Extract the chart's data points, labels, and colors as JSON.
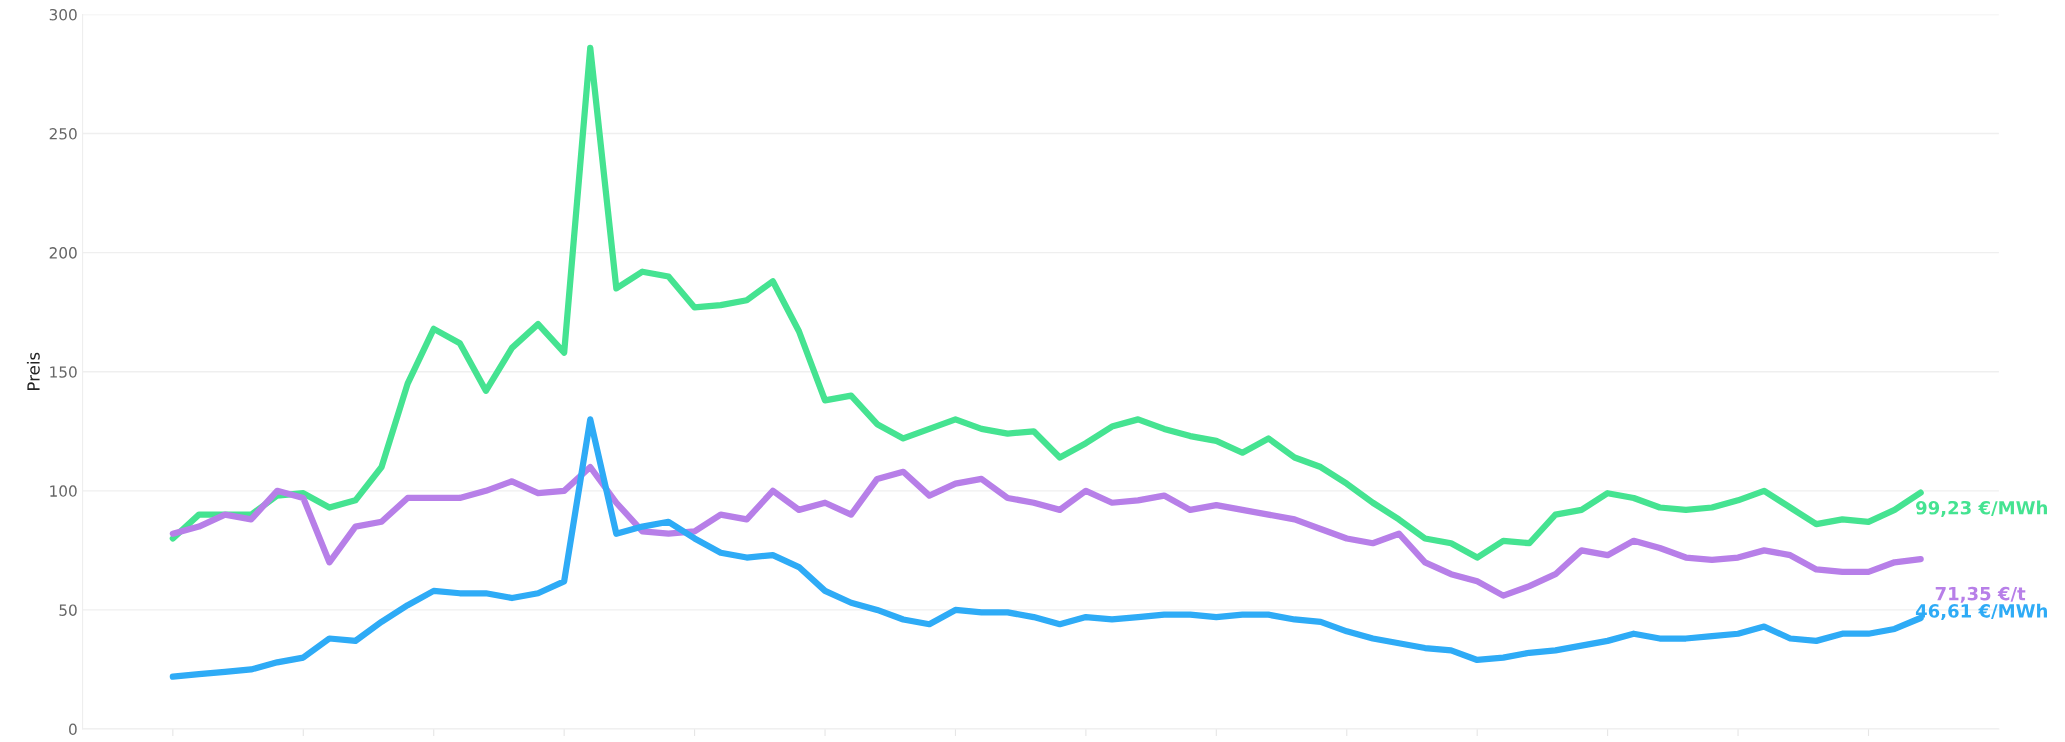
{
  "chart_data": {
    "type": "line",
    "ylabel": "Preis",
    "ylim": [
      0,
      300
    ],
    "yticks": [
      0,
      50,
      100,
      150,
      200,
      250,
      300
    ],
    "grid": "y",
    "tick_labels": "y",
    "legend": false,
    "marker": "none",
    "line_style": "solid",
    "categories": [
      null,
      null,
      null,
      null,
      null,
      null,
      null,
      null,
      null,
      null,
      null,
      null,
      null,
      null,
      null,
      null,
      null,
      null,
      null,
      null,
      null,
      null,
      null,
      null,
      null,
      null,
      null,
      null,
      null,
      null,
      null,
      null,
      null,
      null,
      null,
      null,
      null,
      null,
      null,
      null,
      null,
      null,
      null,
      null,
      null,
      null,
      null,
      null,
      null,
      null,
      null,
      null,
      null,
      null,
      null,
      null,
      null,
      null,
      null,
      null,
      null,
      null,
      null,
      null,
      null,
      null,
      null,
      null
    ],
    "series": [
      {
        "color": "#45e391",
        "values": [
          80,
          90,
          90,
          90,
          98,
          99,
          93,
          96,
          110,
          145,
          168,
          162,
          142,
          160,
          170,
          158,
          286,
          185,
          192,
          190,
          177,
          178,
          180,
          188,
          167,
          138,
          140,
          128,
          122,
          126,
          130,
          126,
          124,
          125,
          114,
          120,
          127,
          130,
          126,
          123,
          121,
          116,
          122,
          114,
          110,
          103,
          95,
          88,
          80,
          78,
          72,
          79,
          78,
          90,
          92,
          99,
          97,
          93,
          92,
          93,
          96,
          100,
          93,
          86,
          88,
          87,
          92,
          99.23
        ],
        "value_labels": [
          null,
          null,
          null,
          null,
          null,
          null,
          null,
          null,
          null,
          null,
          null,
          null,
          null,
          null,
          null,
          null,
          null,
          null,
          null,
          null,
          null,
          null,
          null,
          null,
          null,
          null,
          null,
          null,
          null,
          null,
          null,
          null,
          null,
          null,
          null,
          null,
          null,
          null,
          null,
          null,
          null,
          null,
          null,
          null,
          null,
          null,
          null,
          null,
          null,
          null,
          null,
          null,
          null,
          null,
          null,
          null,
          null,
          null,
          null,
          null,
          null,
          null,
          null,
          null,
          null,
          null,
          null,
          "99,23 €/MWh"
        ]
      },
      {
        "color": "#b77fe8",
        "values": [
          82,
          85,
          90,
          88,
          100,
          97,
          70,
          85,
          87,
          97,
          97,
          97,
          100,
          104,
          99,
          100,
          110,
          95,
          83,
          82,
          83,
          90,
          88,
          100,
          92,
          95,
          90,
          105,
          108,
          98,
          103,
          105,
          97,
          95,
          92,
          100,
          95,
          96,
          98,
          92,
          94,
          92,
          90,
          88,
          84,
          80,
          78,
          82,
          70,
          65,
          62,
          56,
          60,
          65,
          75,
          73,
          79,
          76,
          72,
          71,
          72,
          75,
          73,
          67,
          66,
          66,
          70,
          71.35
        ],
        "value_labels": [
          null,
          null,
          null,
          null,
          null,
          null,
          null,
          null,
          null,
          null,
          null,
          null,
          null,
          null,
          null,
          null,
          null,
          null,
          null,
          null,
          null,
          null,
          null,
          null,
          null,
          null,
          null,
          null,
          null,
          null,
          null,
          null,
          null,
          null,
          null,
          null,
          null,
          null,
          null,
          null,
          null,
          null,
          null,
          null,
          null,
          null,
          null,
          null,
          null,
          null,
          null,
          null,
          null,
          null,
          null,
          null,
          null,
          null,
          null,
          null,
          null,
          null,
          null,
          null,
          null,
          null,
          null,
          "71,35 €/t"
        ]
      },
      {
        "color": "#2eabf6",
        "values": [
          22,
          23,
          24,
          25,
          28,
          30,
          38,
          37,
          45,
          52,
          58,
          57,
          57,
          55,
          57,
          62,
          130,
          82,
          85,
          87,
          80,
          74,
          72,
          73,
          68,
          58,
          53,
          50,
          46,
          44,
          50,
          49,
          49,
          47,
          44,
          47,
          46,
          47,
          48,
          48,
          47,
          48,
          48,
          46,
          45,
          41,
          38,
          36,
          34,
          33,
          29,
          30,
          32,
          33,
          35,
          37,
          40,
          38,
          38,
          39,
          40,
          43,
          38,
          37,
          40,
          40,
          42,
          46.61
        ],
        "value_labels": [
          null,
          null,
          null,
          null,
          null,
          null,
          null,
          null,
          null,
          null,
          null,
          null,
          null,
          null,
          null,
          null,
          null,
          null,
          null,
          null,
          null,
          null,
          null,
          null,
          null,
          null,
          null,
          null,
          null,
          null,
          null,
          null,
          null,
          null,
          null,
          null,
          null,
          null,
          null,
          null,
          null,
          null,
          null,
          null,
          null,
          null,
          null,
          null,
          null,
          null,
          null,
          null,
          null,
          null,
          null,
          null,
          null,
          null,
          null,
          null,
          null,
          null,
          null,
          null,
          null,
          null,
          null,
          "46,61 €/MWh"
        ]
      }
    ]
  }
}
